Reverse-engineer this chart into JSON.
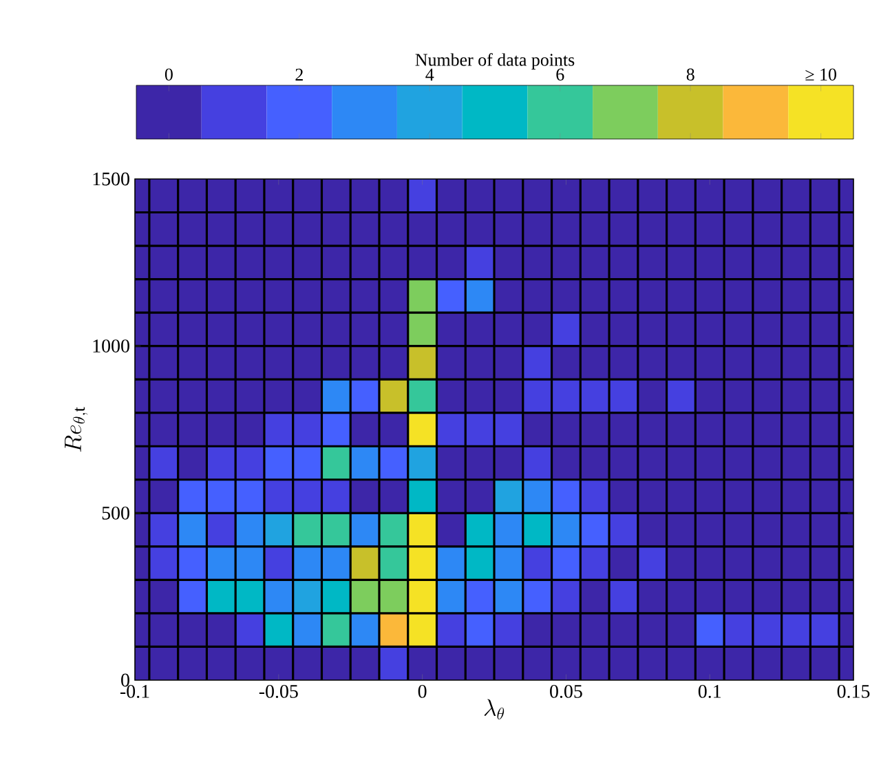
{
  "chart_data": {
    "type": "heatmap",
    "xlabel": "\\lambda_\\theta",
    "ylabel": "Re_{\\theta,\\mathrm{t}}",
    "clabel": "Number of data points",
    "x": [
      -0.1,
      -0.09,
      -0.08,
      -0.07,
      -0.06,
      -0.05,
      -0.04,
      -0.03,
      -0.02,
      -0.01,
      0,
      0.01,
      0.02,
      0.03,
      0.04,
      0.05,
      0.06,
      0.07,
      0.08,
      0.09,
      0.1,
      0.11,
      0.12,
      0.13,
      0.14,
      0.15
    ],
    "y": [
      1450,
      1350,
      1250,
      1150,
      1050,
      950,
      850,
      750,
      650,
      550,
      450,
      350,
      250,
      150,
      50
    ],
    "cells": [
      [
        0,
        0,
        0,
        0,
        0,
        0,
        0,
        0,
        0,
        0,
        1,
        0,
        0,
        0,
        0,
        0,
        0,
        0,
        0,
        0,
        0,
        0,
        0,
        0,
        0,
        0
      ],
      [
        0,
        0,
        0,
        0,
        0,
        0,
        0,
        0,
        0,
        0,
        0,
        0,
        0,
        0,
        0,
        0,
        0,
        0,
        0,
        0,
        0,
        0,
        0,
        0,
        0,
        0
      ],
      [
        0,
        0,
        0,
        0,
        0,
        0,
        0,
        0,
        0,
        0,
        0,
        0,
        1,
        0,
        0,
        0,
        0,
        0,
        0,
        0,
        0,
        0,
        0,
        0,
        0,
        0
      ],
      [
        0,
        0,
        0,
        0,
        0,
        0,
        0,
        0,
        0,
        0,
        7,
        2,
        3,
        0,
        0,
        0,
        0,
        0,
        0,
        0,
        0,
        0,
        0,
        0,
        0,
        0
      ],
      [
        0,
        0,
        0,
        0,
        0,
        0,
        0,
        0,
        0,
        0,
        7,
        0,
        0,
        0,
        0,
        1,
        0,
        0,
        0,
        0,
        0,
        0,
        0,
        0,
        0,
        0
      ],
      [
        0,
        0,
        0,
        0,
        0,
        0,
        0,
        0,
        0,
        0,
        8,
        0,
        0,
        0,
        1,
        0,
        0,
        0,
        0,
        0,
        0,
        0,
        0,
        0,
        0,
        0
      ],
      [
        0,
        0,
        0,
        0,
        0,
        0,
        0,
        3,
        2,
        8,
        6,
        0,
        0,
        0,
        1,
        1,
        1,
        1,
        0,
        1,
        0,
        0,
        0,
        0,
        0,
        0
      ],
      [
        0,
        0,
        0,
        0,
        0,
        1,
        1,
        2,
        0,
        0,
        10,
        1,
        1,
        1,
        0,
        0,
        0,
        0,
        0,
        0,
        0,
        0,
        0,
        0,
        0,
        0
      ],
      [
        0,
        1,
        0,
        1,
        1,
        2,
        2,
        6,
        3,
        2,
        4,
        0,
        0,
        0,
        1,
        0,
        0,
        0,
        0,
        0,
        0,
        0,
        0,
        0,
        0,
        0
      ],
      [
        0,
        0,
        2,
        2,
        2,
        1,
        1,
        1,
        0,
        0,
        5,
        0,
        0,
        4,
        3,
        2,
        1,
        0,
        0,
        0,
        0,
        0,
        0,
        0,
        0,
        0
      ],
      [
        0,
        1,
        3,
        1,
        3,
        4,
        6,
        6,
        3,
        6,
        10,
        0,
        5,
        3,
        5,
        3,
        2,
        1,
        0,
        0,
        0,
        0,
        0,
        0,
        0,
        0
      ],
      [
        0,
        1,
        2,
        3,
        3,
        1,
        3,
        3,
        8,
        6,
        10,
        3,
        5,
        3,
        1,
        2,
        1,
        0,
        1,
        0,
        0,
        0,
        0,
        0,
        0,
        0
      ],
      [
        0,
        0,
        2,
        5,
        5,
        3,
        4,
        5,
        7,
        7,
        10,
        3,
        2,
        3,
        2,
        1,
        0,
        1,
        0,
        0,
        0,
        0,
        0,
        0,
        0,
        0
      ],
      [
        0,
        0,
        0,
        0,
        1,
        5,
        3,
        6,
        3,
        9,
        10,
        1,
        2,
        1,
        0,
        0,
        0,
        0,
        0,
        0,
        2,
        1,
        1,
        1,
        1,
        0
      ],
      [
        0,
        0,
        0,
        0,
        0,
        0,
        0,
        0,
        0,
        1,
        0,
        0,
        0,
        0,
        0,
        0,
        0,
        0,
        0,
        0,
        0,
        0,
        0,
        0,
        0,
        0
      ]
    ],
    "xlim": [
      -0.1,
      0.15
    ],
    "xticks": [
      -0.1,
      -0.05,
      0,
      0.05,
      0.1,
      0.15
    ],
    "ylim": [
      0,
      1500
    ],
    "yticks": [
      0,
      500,
      1000,
      1500
    ],
    "clim": [
      -0.5,
      10.5
    ],
    "cticks": [
      0,
      2,
      4,
      6,
      8,
      {
        "value": 10,
        "label": "≥ 10"
      }
    ]
  }
}
